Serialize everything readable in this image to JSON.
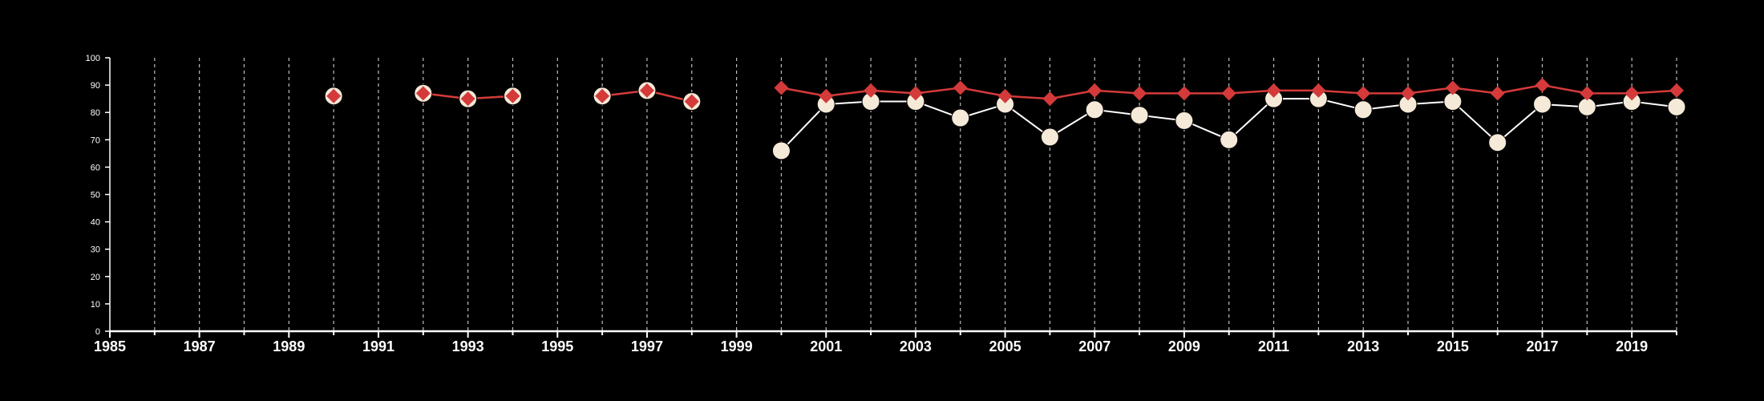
{
  "chart_data": {
    "type": "line",
    "title": "",
    "xlabel": "",
    "ylabel": "",
    "xlim": [
      1985,
      2020
    ],
    "ylim": [
      0,
      100
    ],
    "y_ticks": [
      0,
      10,
      20,
      30,
      40,
      50,
      60,
      70,
      80,
      90,
      100
    ],
    "x_tick_labels": [
      1985,
      1987,
      1989,
      1991,
      1993,
      1995,
      1997,
      1999,
      2001,
      2003,
      2005,
      2007,
      2009,
      2011,
      2013,
      2015,
      2017,
      2019
    ],
    "x_minor_ticks": [
      1986,
      1988,
      1990,
      1992,
      1994,
      1996,
      1998,
      2000,
      2002,
      2004,
      2006,
      2008,
      2010,
      2012,
      2014,
      2016,
      2018,
      2020
    ],
    "grid": "vertical dashed gridlines at every year",
    "colors": {
      "background": "#000000",
      "axis": "#ffffff",
      "grid": "#bdbdbd",
      "series_circle": "#f5e9d8",
      "series_circle_line": "#ffffff",
      "series_diamond": "#d43a3a"
    },
    "series": [
      {
        "marker": "circle",
        "x": [
          1990,
          1992,
          1993,
          1994,
          1996,
          1997,
          1998,
          2000,
          2001,
          2002,
          2003,
          2004,
          2005,
          2006,
          2007,
          2008,
          2009,
          2010,
          2011,
          2012,
          2013,
          2014,
          2015,
          2016,
          2017,
          2018,
          2019,
          2020
        ],
        "y": [
          86,
          87,
          85,
          86,
          86,
          88,
          84,
          66,
          83,
          84,
          84,
          78,
          83,
          71,
          81,
          79,
          77,
          70,
          85,
          85,
          81,
          83,
          84,
          69,
          83,
          82,
          84,
          82
        ]
      },
      {
        "marker": "diamond",
        "x": [
          1990,
          1992,
          1993,
          1994,
          1996,
          1997,
          1998,
          2000,
          2001,
          2002,
          2003,
          2004,
          2005,
          2006,
          2007,
          2008,
          2009,
          2010,
          2011,
          2012,
          2013,
          2014,
          2015,
          2016,
          2017,
          2018,
          2019,
          2020
        ],
        "y": [
          86,
          87,
          85,
          86,
          86,
          88,
          84,
          89,
          86,
          88,
          87,
          89,
          86,
          85,
          88,
          87,
          87,
          87,
          88,
          88,
          87,
          87,
          89,
          87,
          90,
          87,
          87,
          88
        ]
      }
    ]
  }
}
